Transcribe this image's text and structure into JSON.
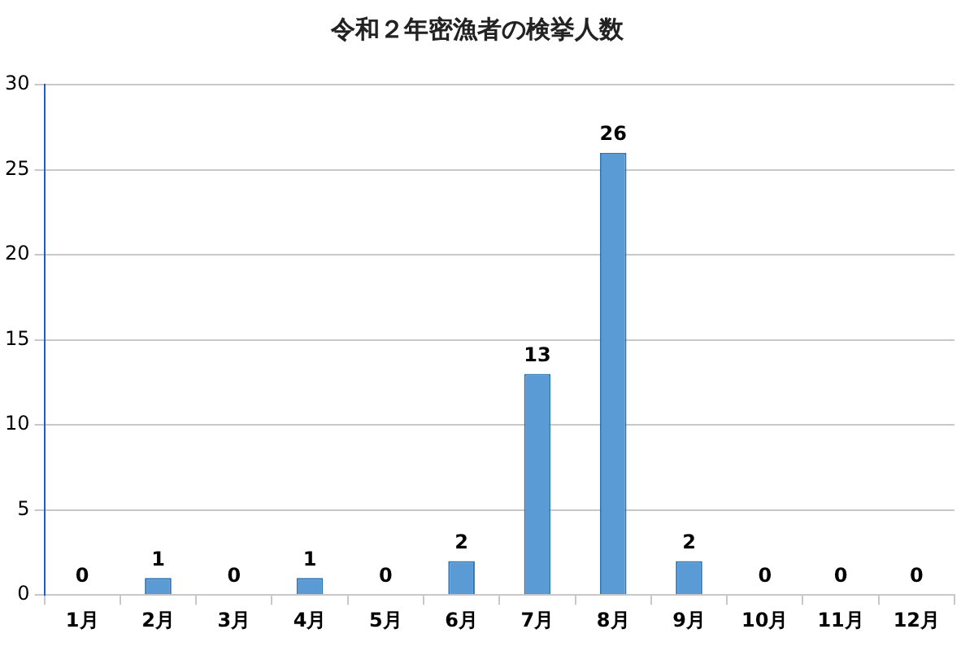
{
  "chart_data": {
    "type": "bar",
    "title": "令和２年密漁者の検挙人数",
    "categories": [
      "1月",
      "2月",
      "3月",
      "4月",
      "5月",
      "6月",
      "7月",
      "8月",
      "9月",
      "10月",
      "11月",
      "12月"
    ],
    "values": [
      0,
      1,
      0,
      1,
      0,
      2,
      13,
      26,
      2,
      0,
      0,
      0
    ],
    "color": "#5b9bd5",
    "ylim": [
      0,
      30
    ],
    "yticks": [
      0,
      5,
      10,
      15,
      20,
      25,
      30
    ],
    "grid": "y",
    "data_labels": true
  }
}
